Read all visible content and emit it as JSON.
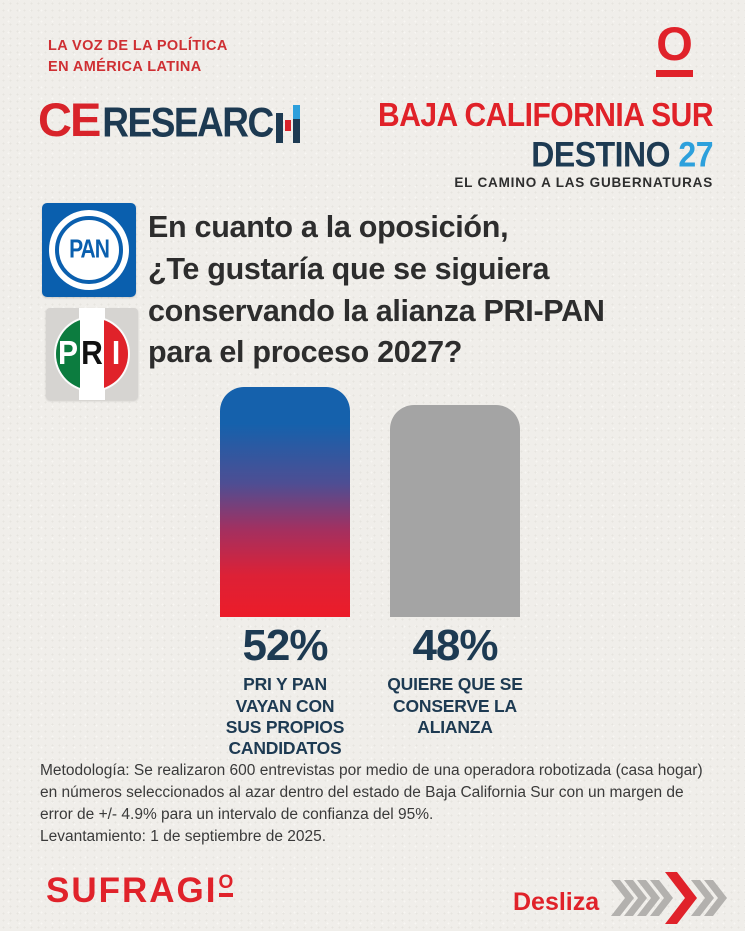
{
  "colors": {
    "background": "#f0eeea",
    "brand_red": "#e0222a",
    "navy": "#1d3a52",
    "light_blue": "#2da0dc",
    "bar_gradient_top": "#1561ac",
    "bar_gradient_bottom": "#ec1c29",
    "bar_gray": "#a4a4a4",
    "pan_blue": "#0a5fae",
    "pri_green": "#0c7c3f",
    "text_dark": "#2d2d2d"
  },
  "header": {
    "tagline_line1": "LA VOZ DE LA POLÍTICA",
    "tagline_line2": "EN AMÉRICA LATINA",
    "o_mark": "O",
    "brand_ce": "CE",
    "brand_research": "RESEARC",
    "title_red": "BAJA CALIFORNIA SUR",
    "title_navy": "DESTINO",
    "title_blue": "27",
    "subtitle": "EL CAMINO A LAS GUBERNATURAS"
  },
  "party_logos": {
    "pan": "PAN",
    "pri_p": "P",
    "pri_r": "R",
    "pri_i": "I"
  },
  "question": {
    "lines": [
      "En cuanto a la oposición,",
      "¿Te gustaría que se siguiera",
      "conservando la alianza PRI-PAN",
      "para el proceso 2027?"
    ]
  },
  "chart_data": {
    "type": "bar",
    "title": "En cuanto a la oposición, ¿Te gustaría que se siguiera conservando la alianza PRI-PAN para el proceso 2027?",
    "categories": [
      "PRI Y PAN VAYAN CON SUS PROPIOS CANDIDATOS",
      "QUIERE QUE SE CONSERVE LA ALIANZA"
    ],
    "values": [
      52,
      48
    ],
    "value_labels": [
      "52%",
      "48%"
    ],
    "bar_colors": [
      "gradient #1561ac to #ec1c29",
      "#a4a4a4"
    ],
    "xlabel": "",
    "ylabel": "",
    "ylim": [
      0,
      52
    ],
    "grid": false,
    "legend": false
  },
  "results": [
    {
      "percent": "52%",
      "lines": [
        "PRI Y PAN",
        "VAYAN CON",
        "SUS PROPIOS",
        "CANDIDATOS"
      ]
    },
    {
      "percent": "48%",
      "lines": [
        "QUIERE QUE SE",
        "CONSERVE LA",
        "ALIANZA"
      ]
    }
  ],
  "methodology": {
    "text": "Metodología: Se realizaron 600 entrevistas por medio de una operadora robotizada (casa hogar) en números seleccionados al azar dentro del estado de Baja California Sur con un margen de error de +/- 4.9% para un intervalo de confianza del 95%.",
    "fieldwork": "Levantamiento: 1 de septiembre de 2025."
  },
  "footer": {
    "brand_main": "SUFRAGI",
    "brand_o": "O",
    "swipe_label": "Desliza"
  },
  "icons": {
    "swipe_arrows": "chevrons-right",
    "o_logo": "underlined-letter-o"
  }
}
